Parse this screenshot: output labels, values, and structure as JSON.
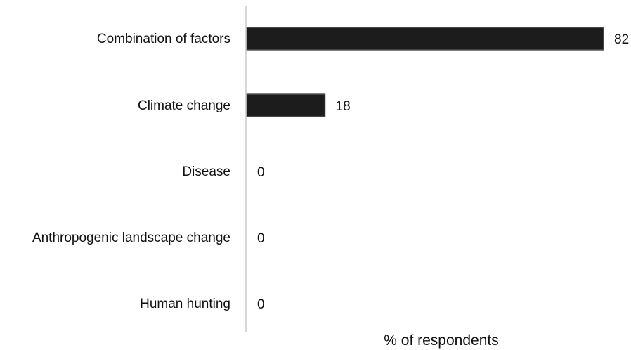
{
  "chart_data": {
    "type": "bar",
    "orientation": "horizontal",
    "categories": [
      "Combination of factors",
      "Climate change",
      "Disease",
      "Anthropogenic landscape change",
      "Human hunting"
    ],
    "values": [
      82,
      18,
      0,
      0,
      0
    ],
    "data_labels": [
      "82",
      "18",
      "0",
      "0",
      "0"
    ],
    "title": "",
    "xlabel": "% of respondents",
    "ylabel": "",
    "xlim": [
      0,
      82
    ],
    "grid": false,
    "legend": "none",
    "colors": {
      "bar": "#1c1c1c",
      "bar_edge": "#555555",
      "axis": "#c8c8c8",
      "text": "#111111"
    }
  }
}
